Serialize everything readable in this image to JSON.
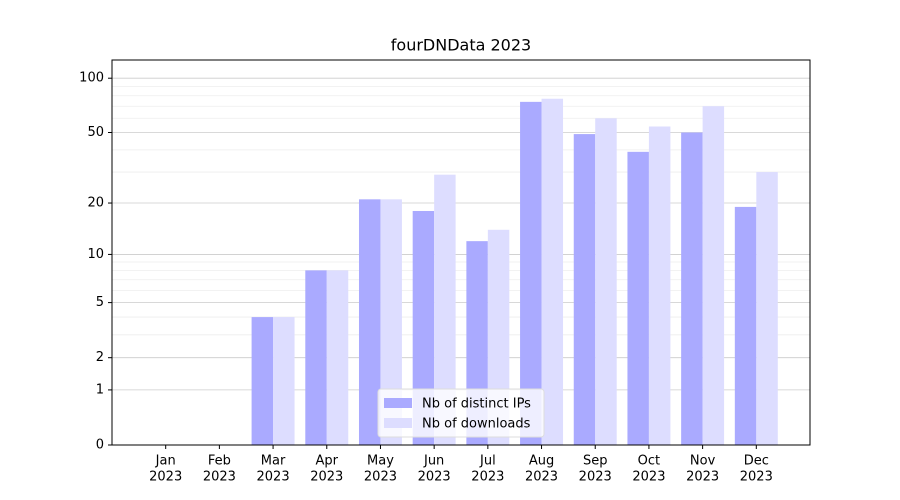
{
  "chart_data": {
    "type": "bar",
    "title": "fourDNData 2023",
    "categories": [
      [
        "Jan",
        "2023"
      ],
      [
        "Feb",
        "2023"
      ],
      [
        "Mar",
        "2023"
      ],
      [
        "Apr",
        "2023"
      ],
      [
        "May",
        "2023"
      ],
      [
        "Jun",
        "2023"
      ],
      [
        "Jul",
        "2023"
      ],
      [
        "Aug",
        "2023"
      ],
      [
        "Sep",
        "2023"
      ],
      [
        "Oct",
        "2023"
      ],
      [
        "Nov",
        "2023"
      ],
      [
        "Dec",
        "2023"
      ]
    ],
    "series": [
      {
        "name": "Nb of distinct IPs",
        "color": "#aaaaff",
        "values": [
          0,
          0,
          4,
          8,
          21,
          18,
          12,
          74,
          49,
          39,
          50,
          19
        ]
      },
      {
        "name": "Nb of downloads",
        "color": "#ddddff",
        "values": [
          0,
          0,
          4,
          8,
          21,
          29,
          14,
          77,
          60,
          54,
          70,
          30
        ]
      }
    ],
    "yscale": "log1p",
    "ylim": [
      0,
      126
    ],
    "yticks": [
      0,
      1,
      2,
      5,
      10,
      20,
      50,
      100
    ],
    "minor_yticks": [
      3,
      4,
      6,
      7,
      8,
      9,
      30,
      40,
      60,
      70,
      80,
      90
    ],
    "grid": true,
    "legend": "lower center"
  }
}
